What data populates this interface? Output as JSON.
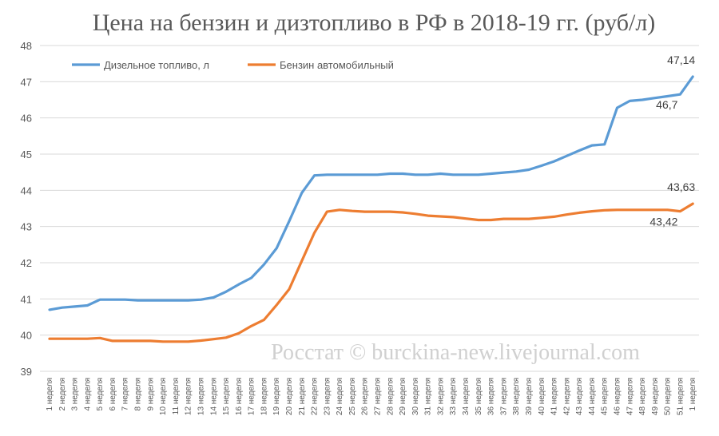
{
  "chart_data": {
    "type": "line",
    "title": "Цена на бензин и дизтопливо в РФ в 2018-19 гг. (руб/л)",
    "xlabel": "",
    "ylabel": "",
    "ylim": [
      39,
      48
    ],
    "yticks": [
      "39",
      "40",
      "41",
      "42",
      "43",
      "44",
      "45",
      "46",
      "47",
      "48"
    ],
    "grid": true,
    "legend_position": "top-left",
    "categories": [
      "1 неделя",
      "2 неделя",
      "3 неделя",
      "4 неделя",
      "5 неделя",
      "6 неделя",
      "7 неделя",
      "8 неделя",
      "9 неделя",
      "10 неделя",
      "11 неделя",
      "12 неделя",
      "13 неделя",
      "14 неделя",
      "15 неделя",
      "16 неделя",
      "17 неделя",
      "18 неделя",
      "19 неделя",
      "20 неделя",
      "21 неделя",
      "22 неделя",
      "23 неделя",
      "24 неделя",
      "25 неделя",
      "26 неделя",
      "27 неделя",
      "28 неделя",
      "29 неделя",
      "30 неделя",
      "31 неделя",
      "32 неделя",
      "33 неделя",
      "34 неделя",
      "35 неделя",
      "36 неделя",
      "37 неделя",
      "38 неделя",
      "39 неделя",
      "40 неделя",
      "41 неделя",
      "42 неделя",
      "43 неделя",
      "44 неделя",
      "45 неделя",
      "46 неделя",
      "47 неделя",
      "48 неделя",
      "49 неделя",
      "50 неделя",
      "51 неделя",
      "1 неделя"
    ],
    "series": [
      {
        "name": "Дизельное топливо, л",
        "color": "#5b9bd5",
        "values": [
          40.7,
          40.76,
          40.79,
          40.82,
          40.98,
          40.98,
          40.98,
          40.96,
          40.96,
          40.96,
          40.96,
          40.96,
          40.98,
          41.04,
          41.2,
          41.4,
          41.58,
          41.95,
          42.4,
          43.15,
          43.93,
          44.41,
          44.43,
          44.43,
          44.43,
          44.43,
          44.43,
          44.46,
          44.46,
          44.43,
          44.43,
          44.46,
          44.43,
          44.43,
          44.43,
          44.46,
          44.49,
          44.52,
          44.57,
          44.68,
          44.8,
          44.95,
          45.1,
          45.24,
          45.27,
          46.28,
          46.47,
          46.5,
          46.55,
          46.6,
          46.65,
          47.14
        ]
      },
      {
        "name": "Бензин автомобильный",
        "color": "#ed7d31",
        "values": [
          39.9,
          39.9,
          39.9,
          39.9,
          39.92,
          39.84,
          39.84,
          39.84,
          39.84,
          39.82,
          39.82,
          39.82,
          39.85,
          39.89,
          39.93,
          40.05,
          40.25,
          40.42,
          40.83,
          41.27,
          42.05,
          42.83,
          43.41,
          43.46,
          43.43,
          43.41,
          43.41,
          43.41,
          43.39,
          43.35,
          43.3,
          43.28,
          43.26,
          43.22,
          43.18,
          43.18,
          43.21,
          43.21,
          43.21,
          43.24,
          43.27,
          43.33,
          43.38,
          43.42,
          43.45,
          43.46,
          43.46,
          43.46,
          43.46,
          43.46,
          43.42,
          43.63
        ]
      }
    ],
    "annotations": [
      {
        "text": "47,14",
        "series": 0,
        "index": 51,
        "placement": "above"
      },
      {
        "text": "46,7",
        "series": 0,
        "index": 50,
        "placement": "below"
      },
      {
        "text": "43,63",
        "series": 1,
        "index": 51,
        "placement": "above"
      },
      {
        "text": "43,42",
        "series": 1,
        "index": 50,
        "placement": "below"
      }
    ],
    "watermark": "Росстат © burckina-new.livejournal.com"
  }
}
